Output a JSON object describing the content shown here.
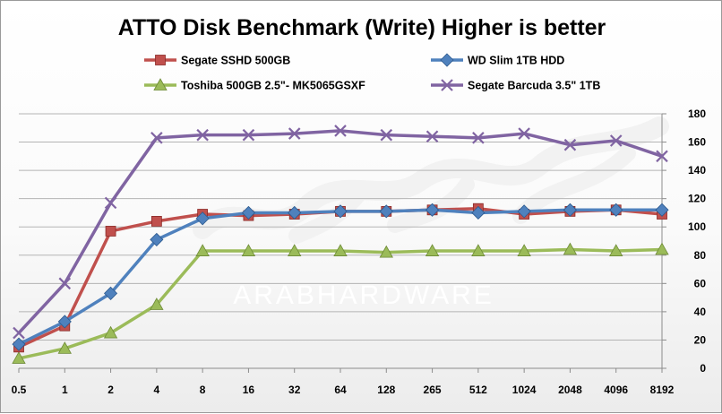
{
  "chart_data": {
    "type": "line",
    "title": "ATTO Disk Benchmark  (Write)  Higher is better",
    "categories": [
      "0.5",
      "1",
      "2",
      "4",
      "8",
      "16",
      "32",
      "64",
      "128",
      "265",
      "512",
      "1024",
      "2048",
      "4096",
      "8192"
    ],
    "ylim": [
      0,
      180
    ],
    "yticks": [
      0,
      20,
      40,
      60,
      80,
      100,
      120,
      140,
      160,
      180
    ],
    "grid": true,
    "legend_position": "top",
    "series": [
      {
        "name": "Segate SSHD 500GB",
        "color": "#c0504d",
        "marker": "square",
        "values": [
          15,
          30,
          97,
          104,
          109,
          108,
          109,
          111,
          111,
          112,
          113,
          109,
          111,
          112,
          109
        ]
      },
      {
        "name": "WD Slim 1TB HDD",
        "color": "#4f81bd",
        "marker": "diamond",
        "values": [
          17,
          33,
          53,
          91,
          106,
          110,
          110,
          111,
          111,
          112,
          110,
          111,
          112,
          112,
          112
        ]
      },
      {
        "name": "Toshiba 500GB 2.5\"- MK5065GSXF",
        "color": "#9bbb59",
        "marker": "triangle",
        "values": [
          7,
          14,
          25,
          45,
          83,
          83,
          83,
          83,
          82,
          83,
          83,
          83,
          84,
          83,
          84
        ]
      },
      {
        "name": "Segate Barcuda 3.5\" 1TB",
        "color": "#8064a2",
        "marker": "x",
        "values": [
          25,
          60,
          117,
          163,
          165,
          165,
          166,
          168,
          165,
          164,
          163,
          166,
          158,
          161,
          150
        ]
      }
    ]
  },
  "watermark": {
    "text": "ARABHARDWARE"
  }
}
